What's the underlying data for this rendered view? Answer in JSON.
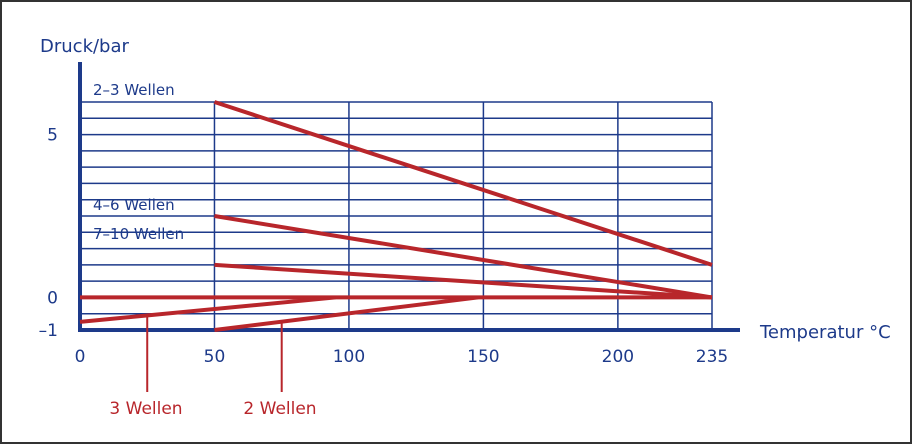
{
  "chart_data": {
    "type": "line",
    "ylabel": "Druck/bar",
    "xlabel": "Temperatur °C",
    "x_ticks": [
      0,
      50,
      100,
      150,
      200,
      235
    ],
    "x_tick_labels": [
      "0",
      "50",
      "100",
      "150",
      "200",
      "235"
    ],
    "y_ticks": [
      -1,
      0,
      5
    ],
    "y_tick_labels": [
      "–1",
      "0",
      "5"
    ],
    "xlim": [
      0,
      235
    ],
    "ylim": [
      -1,
      6
    ],
    "grid": true,
    "series": [
      {
        "name": "2–3 Wellen",
        "x": [
          50,
          235
        ],
        "y": [
          6,
          1
        ]
      },
      {
        "name": "4–6 Wellen",
        "x": [
          50,
          235
        ],
        "y": [
          2.5,
          0
        ]
      },
      {
        "name": "7–10 Wellen",
        "x": [
          50,
          235
        ],
        "y": [
          1,
          0
        ]
      },
      {
        "name": "3 Wellen",
        "x": [
          0,
          95
        ],
        "y": [
          -0.75,
          0
        ]
      },
      {
        "name": "2 Wellen",
        "x": [
          50,
          148
        ],
        "y": [
          -1,
          0
        ]
      }
    ],
    "baseline": {
      "x": [
        0,
        235
      ],
      "y": [
        0,
        0
      ]
    },
    "colors": {
      "axis": "#1d3a8a",
      "series": "#b8262b"
    }
  }
}
